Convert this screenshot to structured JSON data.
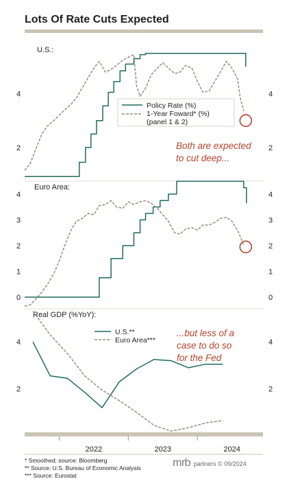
{
  "title": "Lots Of Rate Cuts Expected",
  "footnotes": [
    "*   Smoothed; source: Bloomberg",
    "**  Source: U.S. Bureau of Economic Analysis",
    "*** Source: Eurostat"
  ],
  "brand": {
    "name": "mrb",
    "text": "partners © 09/2024"
  },
  "colors": {
    "policy": "#1e6b5a",
    "forward": "#9a8c76",
    "annotation": "#b5432b",
    "axis": "#cbc3b6",
    "text": "#222222"
  },
  "x_axis": {
    "ticks": [
      "2022",
      "2023",
      "2024"
    ],
    "tick_values": [
      2022.5,
      2023.5,
      2024.5
    ],
    "range": [
      2021.5,
      2024.95
    ]
  },
  "annotations": {
    "us": [
      "Both are expected",
      "to cut deep..."
    ],
    "gdp": [
      "...but less of a",
      "case to do so",
      "for the Fed"
    ]
  },
  "chart_data": [
    {
      "type": "line",
      "panel": "U.S.:",
      "title": "U.S.:",
      "ylim": [
        0.8,
        5.9
      ],
      "yticks": [
        2,
        4
      ],
      "legend": {
        "placement": "middle-right",
        "entries": [
          "Policy Rate (%)",
          "1-Year Foward* (%)",
          "(panel 1 & 2)"
        ]
      },
      "series": [
        {
          "name": "Policy Rate (%)",
          "style": "solid-step",
          "x": [
            2021.5,
            2022.2,
            2022.29,
            2022.38,
            2022.46,
            2022.54,
            2022.63,
            2022.71,
            2022.79,
            2022.88,
            2022.96,
            2023.08,
            2023.17,
            2023.25,
            2023.33,
            2023.54,
            2024.67,
            2024.7
          ],
          "y": [
            0.92,
            0.92,
            1.45,
            2.0,
            2.5,
            3.0,
            3.55,
            4.05,
            4.45,
            4.85,
            5.1,
            5.3,
            5.45,
            5.5,
            5.5,
            5.5,
            5.5,
            5.0
          ]
        },
        {
          "name": "1-Year Foward* (%)",
          "style": "dashed",
          "x": [
            2021.5,
            2021.58,
            2021.67,
            2021.75,
            2021.83,
            2021.92,
            2022.0,
            2022.08,
            2022.17,
            2022.25,
            2022.33,
            2022.42,
            2022.5,
            2022.58,
            2022.67,
            2022.75,
            2022.83,
            2022.92,
            2023.0,
            2023.08,
            2023.12,
            2023.17,
            2023.25,
            2023.33,
            2023.42,
            2023.5,
            2023.58,
            2023.67,
            2023.75,
            2023.83,
            2023.92,
            2024.0,
            2024.08,
            2024.17,
            2024.25,
            2024.33,
            2024.42,
            2024.5,
            2024.58,
            2024.62,
            2024.67
          ],
          "y": [
            1.15,
            1.4,
            2.0,
            2.5,
            2.8,
            3.0,
            3.2,
            3.4,
            3.6,
            3.85,
            4.2,
            4.6,
            4.95,
            5.2,
            4.8,
            4.9,
            5.05,
            5.25,
            5.35,
            5.45,
            4.3,
            3.9,
            4.2,
            4.7,
            4.95,
            5.15,
            4.95,
            4.75,
            4.8,
            5.05,
            4.95,
            4.45,
            4.05,
            4.1,
            4.45,
            4.8,
            5.2,
            4.95,
            4.55,
            3.85,
            3.35
          ]
        }
      ],
      "markers": [
        {
          "x": 2024.7,
          "y": 3.0,
          "shape": "circle"
        }
      ]
    },
    {
      "type": "line",
      "panel": "Euro Area:",
      "title": "Euro Area:",
      "ylim": [
        -0.4,
        4.45
      ],
      "yticks": [
        0,
        1,
        2,
        3,
        4
      ],
      "series": [
        {
          "name": "Policy Rate (%)",
          "style": "solid-step",
          "x": [
            2021.5,
            2022.55,
            2022.58,
            2022.71,
            2022.75,
            2022.85,
            2022.92,
            2023.08,
            2023.17,
            2023.25,
            2023.36,
            2023.46,
            2023.58,
            2023.7,
            2024.42,
            2024.67,
            2024.71
          ],
          "y": [
            0.0,
            0.0,
            0.75,
            0.75,
            1.5,
            1.5,
            2.0,
            2.5,
            3.0,
            3.25,
            3.5,
            3.75,
            4.0,
            4.5,
            4.5,
            4.25,
            3.65
          ],
          "color": "#1e6b5a"
        },
        {
          "name": "1-Year Foward* (%)",
          "style": "dashed",
          "x": [
            2021.5,
            2021.58,
            2021.67,
            2021.75,
            2021.83,
            2021.92,
            2022.0,
            2022.08,
            2022.17,
            2022.25,
            2022.33,
            2022.42,
            2022.5,
            2022.58,
            2022.67,
            2022.75,
            2022.83,
            2022.92,
            2023.0,
            2023.08,
            2023.17,
            2023.25,
            2023.33,
            2023.42,
            2023.5,
            2023.58,
            2023.67,
            2023.75,
            2023.83,
            2023.92,
            2024.0,
            2024.08,
            2024.17,
            2024.25,
            2024.33,
            2024.42,
            2024.5,
            2024.58,
            2024.63,
            2024.67
          ],
          "y": [
            -0.35,
            -0.3,
            -0.05,
            0.2,
            0.5,
            0.9,
            1.4,
            2.0,
            2.6,
            2.95,
            3.05,
            3.25,
            3.2,
            3.55,
            3.6,
            3.75,
            3.5,
            3.45,
            3.7,
            3.6,
            3.7,
            3.75,
            3.65,
            3.45,
            3.2,
            2.95,
            2.5,
            2.45,
            2.65,
            2.7,
            2.6,
            2.8,
            2.8,
            2.9,
            3.05,
            3.1,
            2.95,
            2.6,
            2.3,
            2.0
          ]
        }
      ],
      "markers": [
        {
          "x": 2024.7,
          "y": 1.95,
          "shape": "circle"
        }
      ]
    },
    {
      "type": "line",
      "panel": "Real GDP (%YoY):",
      "title": "Real GDP (%YoY):",
      "ylim": [
        0.15,
        5.35
      ],
      "yticks": [
        2,
        4
      ],
      "legend": {
        "placement": "top-center",
        "entries": [
          "U.S.**",
          "Euro Area***"
        ]
      },
      "series": [
        {
          "name": "U.S.**",
          "style": "solid",
          "x": [
            2021.62,
            2021.87,
            2022.12,
            2022.37,
            2022.62,
            2022.87,
            2023.12,
            2023.37,
            2023.62,
            2023.87,
            2024.12,
            2024.37
          ],
          "y": [
            4.0,
            2.55,
            2.45,
            1.85,
            1.2,
            2.3,
            2.85,
            3.25,
            3.2,
            2.9,
            3.05,
            3.05
          ]
        },
        {
          "name": "Euro Area***",
          "style": "dashed",
          "x": [
            2021.62,
            2021.87,
            2022.12,
            2022.37,
            2022.62,
            2022.87,
            2023.12,
            2023.37,
            2023.62,
            2023.87,
            2024.12,
            2024.37
          ],
          "y": [
            5.3,
            4.3,
            3.5,
            2.55,
            1.95,
            1.5,
            1.0,
            0.45,
            0.2,
            0.35,
            0.55,
            0.65
          ]
        }
      ]
    }
  ]
}
